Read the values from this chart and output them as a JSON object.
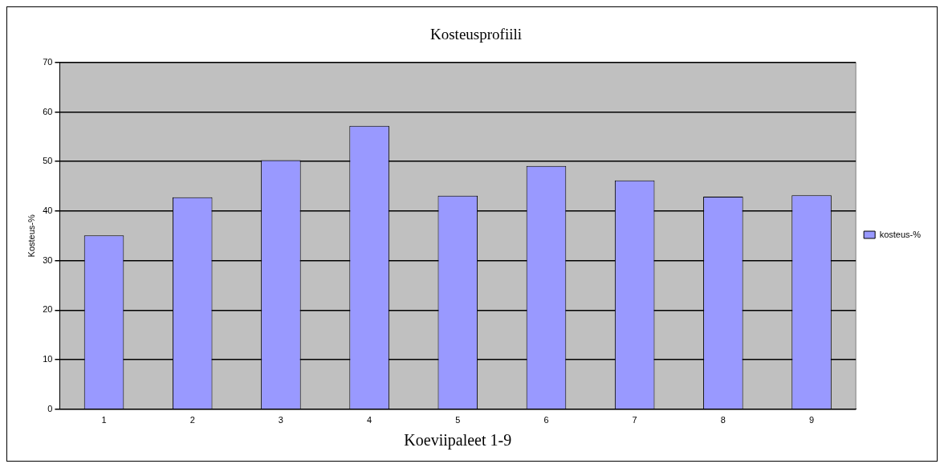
{
  "chart_data": {
    "type": "bar",
    "title": "Kosteusprofiili",
    "xlabel": "Koeviipaleet 1-9",
    "ylabel": "Kosteus-%",
    "categories": [
      "1",
      "2",
      "3",
      "4",
      "5",
      "6",
      "7",
      "8",
      "9"
    ],
    "series": [
      {
        "name": "kosteus-%",
        "color": "#9999ff",
        "values": [
          35.1,
          42.8,
          50.3,
          57.2,
          43.1,
          49.1,
          46.2,
          42.9,
          43.2
        ]
      }
    ],
    "ylim": [
      0,
      70
    ],
    "yticks": [
      0,
      10,
      20,
      30,
      40,
      50,
      60,
      70
    ],
    "grid": "y",
    "legend": "right"
  }
}
